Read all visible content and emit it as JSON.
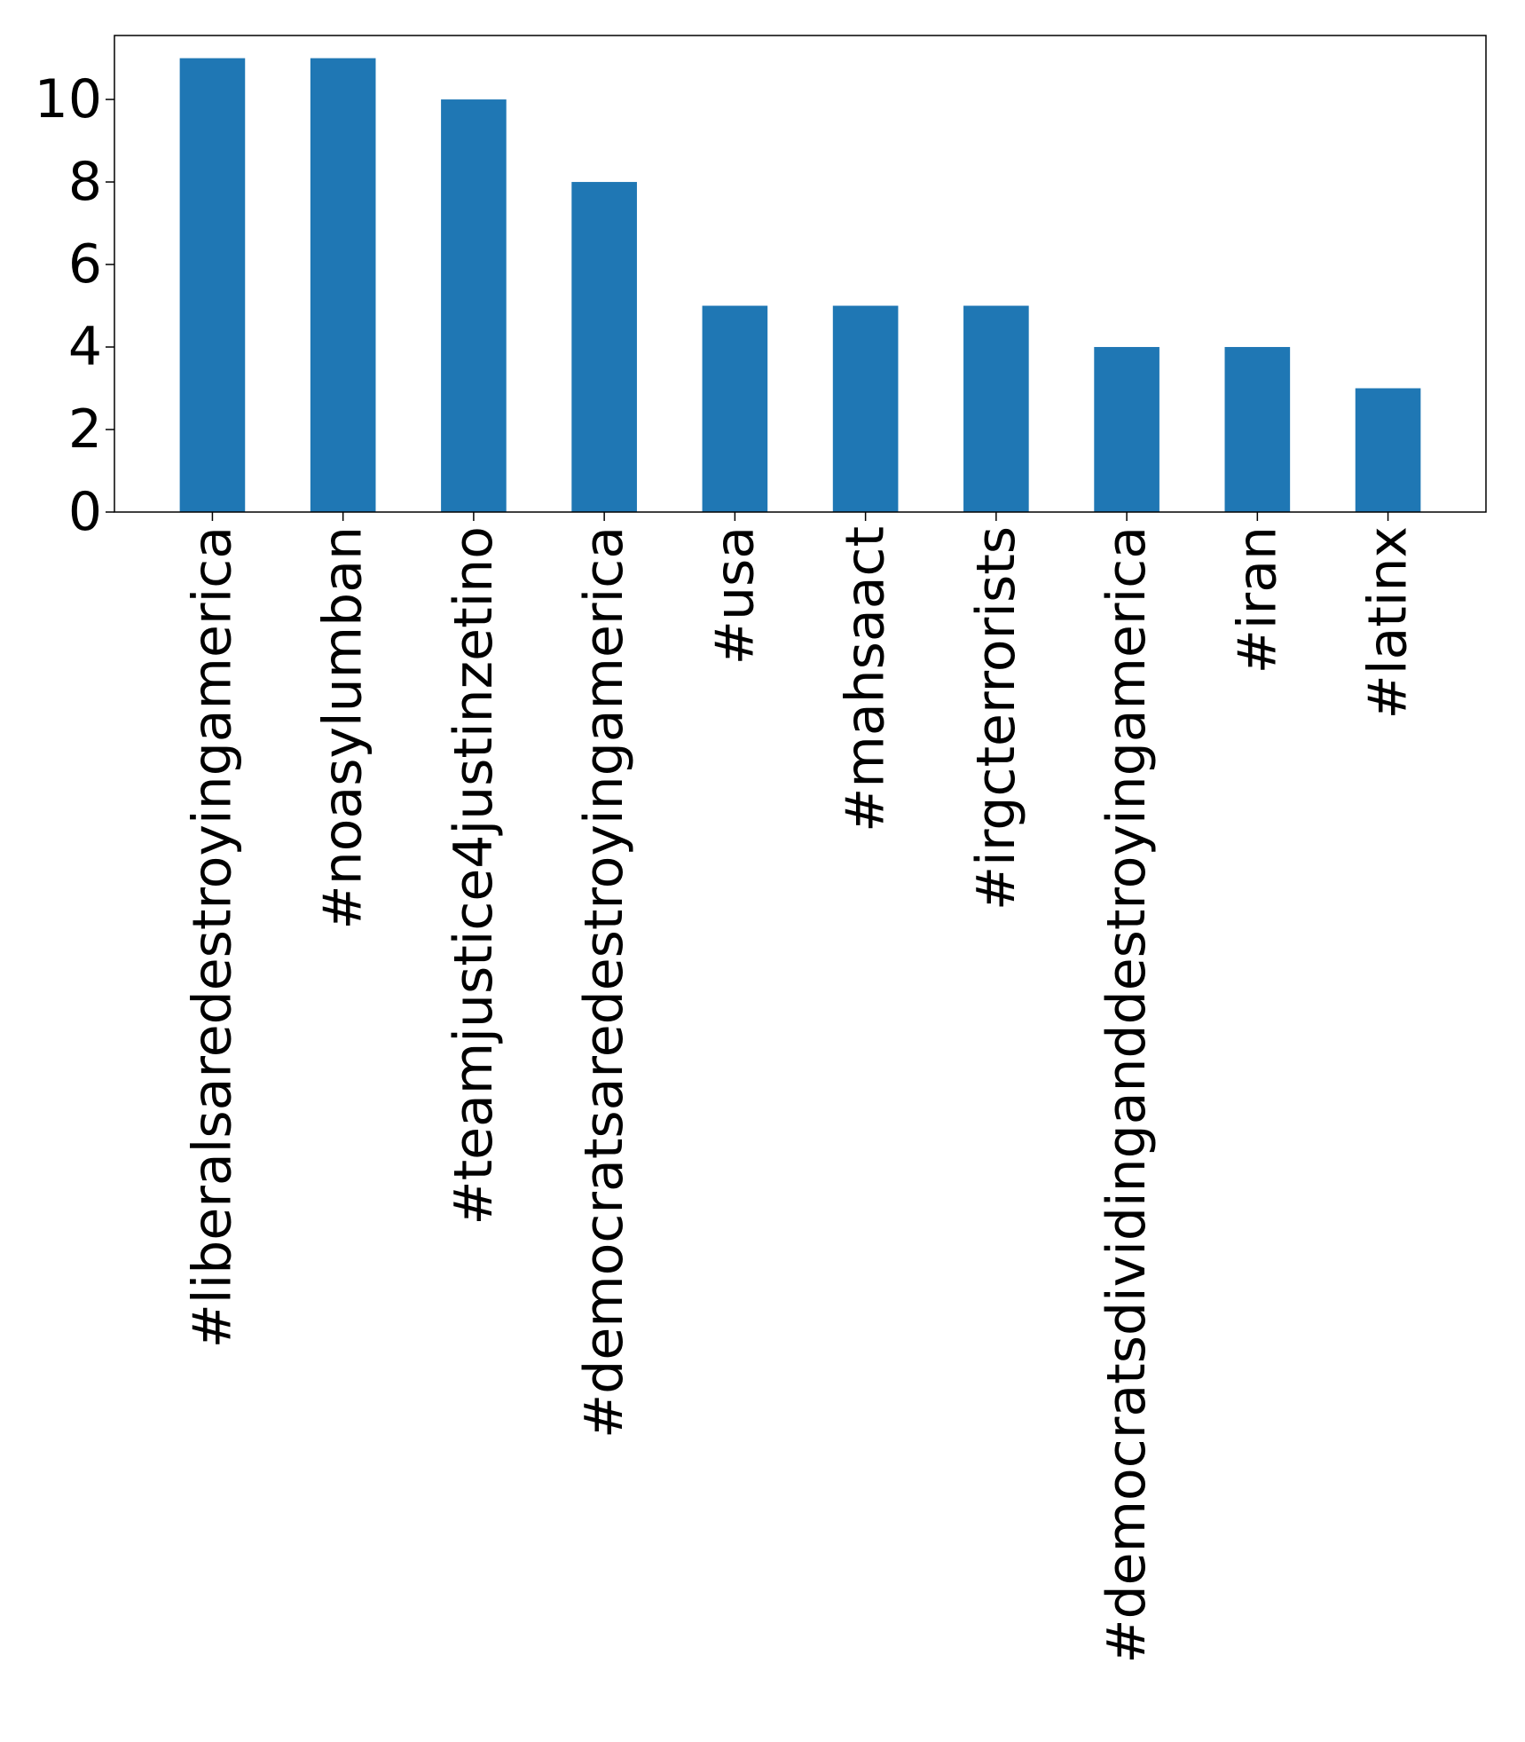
{
  "chart_data": {
    "type": "bar",
    "title": "",
    "xlabel": "",
    "ylabel": "",
    "categories": [
      "#liberalsaredestroyingamerica",
      "#noasylumban",
      "#teamjustice4justinzetino",
      "#democratsaredestroyingamerica",
      "#usa",
      "#mahsaact",
      "#irgcterrorists",
      "#democratsdividinganddestroyingamerica",
      "#iran",
      "#latinx"
    ],
    "values": [
      11,
      11,
      10,
      8,
      5,
      5,
      5,
      4,
      4,
      3
    ],
    "ylim": [
      0,
      11.55
    ],
    "yticks": [
      0,
      2,
      4,
      6,
      8,
      10
    ],
    "ytick_labels": [
      "0",
      "2",
      "4",
      "6",
      "8",
      "10"
    ],
    "grid": false,
    "legend": "none",
    "bar_color": "#1f77b4"
  }
}
